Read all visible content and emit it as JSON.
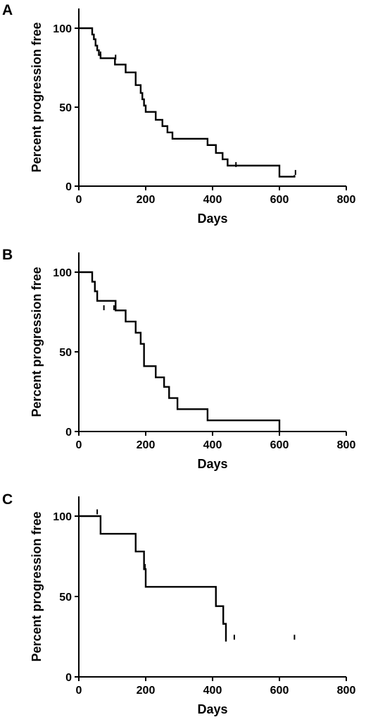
{
  "chart_data": [
    {
      "type": "line",
      "panel": "A",
      "xlabel": "Days",
      "ylabel": "Percent progression free",
      "xlim": [
        0,
        800
      ],
      "ylim": [
        0,
        100
      ],
      "xticks": [
        0,
        200,
        400,
        600,
        800
      ],
      "yticks": [
        0,
        50,
        100
      ],
      "series": [
        {
          "style": "step",
          "x": [
            0,
            40,
            45,
            50,
            55,
            60,
            65,
            108,
            140,
            170,
            185,
            190,
            195,
            200,
            230,
            250,
            265,
            280,
            300,
            385,
            410,
            430,
            445,
            600,
            645
          ],
          "y": [
            100,
            96,
            93,
            89,
            86,
            83,
            81,
            77,
            72,
            64,
            59,
            55,
            51,
            47,
            42,
            38,
            34,
            30,
            30,
            26,
            21,
            17,
            13,
            6,
            7
          ],
          "censored": [
            [
              65,
              83
            ],
            [
              110,
              81
            ],
            [
              470,
              13
            ],
            [
              648,
              8
            ]
          ]
        }
      ]
    },
    {
      "type": "line",
      "panel": "B",
      "xlabel": "Days",
      "ylabel": "Percent progression free",
      "xlim": [
        0,
        800
      ],
      "ylim": [
        0,
        100
      ],
      "xticks": [
        0,
        200,
        400,
        600,
        800
      ],
      "yticks": [
        0,
        50,
        100
      ],
      "series": [
        {
          "style": "step",
          "x": [
            0,
            40,
            48,
            55,
            110,
            140,
            170,
            185,
            195,
            230,
            255,
            270,
            295,
            385,
            600
          ],
          "y": [
            100,
            94,
            88,
            82,
            76,
            69,
            62,
            55,
            41,
            34,
            28,
            21,
            14,
            7,
            0
          ],
          "censored": [
            [
              75,
              77
            ],
            [
              105,
              77
            ]
          ]
        }
      ]
    },
    {
      "type": "line",
      "panel": "C",
      "xlabel": "Days",
      "ylabel": "Percent progression free",
      "xlim": [
        0,
        800
      ],
      "ylim": [
        0,
        100
      ],
      "xticks": [
        0,
        200,
        400,
        600,
        800
      ],
      "yticks": [
        0,
        50,
        100
      ],
      "series": [
        {
          "style": "step",
          "x": [
            0,
            65,
            170,
            195,
            200,
            410,
            432,
            440
          ],
          "y": [
            100,
            89,
            78,
            67,
            56,
            44,
            33,
            22
          ],
          "censored": [
            [
              55,
              102
            ],
            [
              198,
              68
            ],
            [
              465,
              24
            ],
            [
              645,
              24
            ]
          ]
        }
      ]
    }
  ]
}
